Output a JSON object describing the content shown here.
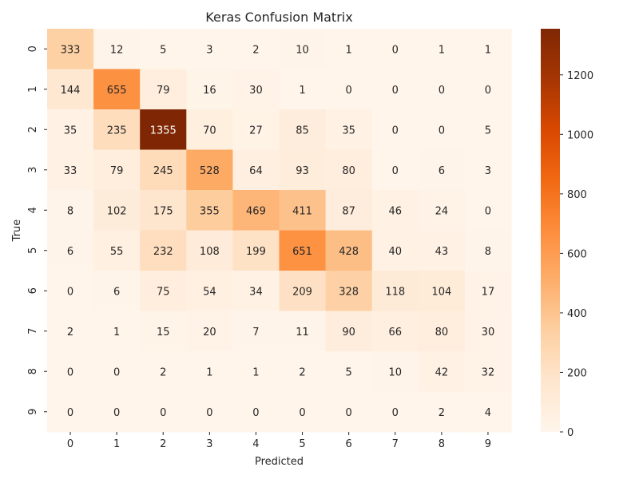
{
  "chart_data": {
    "type": "heatmap",
    "title": "Keras Confusion Matrix",
    "xlabel": "Predicted",
    "ylabel": "True",
    "x_categories": [
      "0",
      "1",
      "2",
      "3",
      "4",
      "5",
      "6",
      "7",
      "8",
      "9"
    ],
    "y_categories": [
      "0",
      "1",
      "2",
      "3",
      "4",
      "5",
      "6",
      "7",
      "8",
      "9"
    ],
    "values": [
      [
        333,
        12,
        5,
        3,
        2,
        10,
        1,
        0,
        1,
        1
      ],
      [
        144,
        655,
        79,
        16,
        30,
        1,
        0,
        0,
        0,
        0
      ],
      [
        35,
        235,
        1355,
        70,
        27,
        85,
        35,
        0,
        0,
        5
      ],
      [
        33,
        79,
        245,
        528,
        64,
        93,
        80,
        0,
        6,
        3
      ],
      [
        8,
        102,
        175,
        355,
        469,
        411,
        87,
        46,
        24,
        0
      ],
      [
        6,
        55,
        232,
        108,
        199,
        651,
        428,
        40,
        43,
        8
      ],
      [
        0,
        6,
        75,
        54,
        34,
        209,
        328,
        118,
        104,
        17
      ],
      [
        2,
        1,
        15,
        20,
        7,
        11,
        90,
        66,
        80,
        30
      ],
      [
        0,
        0,
        2,
        1,
        1,
        2,
        5,
        10,
        42,
        32
      ],
      [
        0,
        0,
        0,
        0,
        0,
        0,
        0,
        0,
        2,
        4
      ]
    ],
    "colormap": "Oranges",
    "colorbar": {
      "range": [
        0,
        1355
      ],
      "ticks": [
        0,
        200,
        400,
        600,
        800,
        1000,
        1200
      ],
      "tick_labels": [
        "0",
        "200",
        "400",
        "600",
        "800",
        "1000",
        "1200"
      ]
    },
    "grid": false
  }
}
